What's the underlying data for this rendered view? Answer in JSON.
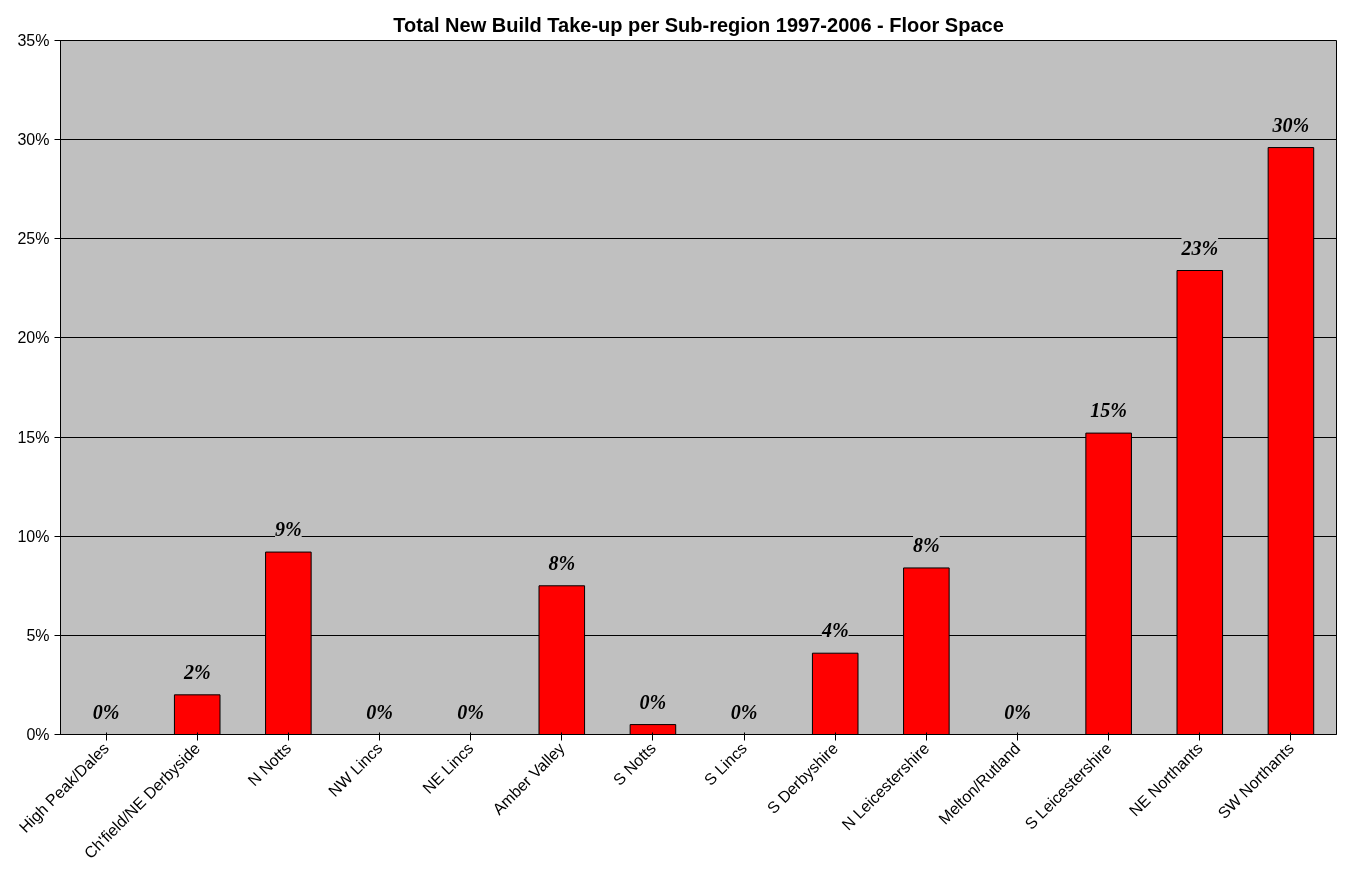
{
  "chart_data": {
    "type": "bar",
    "title": "Total New Build Take-up per Sub-region 1997-2006 - Floor Space",
    "categories": [
      "High Peak/Dales",
      "Ch'field/NE Derbyside",
      "N Notts",
      "NW Lincs",
      "NE Lincs",
      "Amber Valley",
      "S Notts",
      "S Lincs",
      "S Derbyshire",
      "N Leicestershire",
      "Melton/Rutland",
      "S Leicestershire",
      "NE Northants",
      "SW Northants"
    ],
    "values": [
      0,
      2.0,
      9.2,
      0,
      0,
      7.5,
      0.5,
      0,
      4.1,
      8.4,
      0,
      15.2,
      23.4,
      29.6
    ],
    "value_labels": [
      "0%",
      "2%",
      "9%",
      "0%",
      "0%",
      "8%",
      "0%",
      "0%",
      "4%",
      "8%",
      "0%",
      "15%",
      "23%",
      "30%"
    ],
    "color": "#ff0000",
    "ylim": [
      0,
      35
    ],
    "yticks": [
      {
        "value": 0,
        "label": "0%"
      },
      {
        "value": 5,
        "label": "5%"
      },
      {
        "value": 10,
        "label": "10%"
      },
      {
        "value": 15,
        "label": "15%"
      },
      {
        "value": 20,
        "label": "20%"
      },
      {
        "value": 25,
        "label": "25%"
      },
      {
        "value": 30,
        "label": "30%"
      },
      {
        "value": 35,
        "label": "35%"
      }
    ],
    "grid": "y"
  }
}
